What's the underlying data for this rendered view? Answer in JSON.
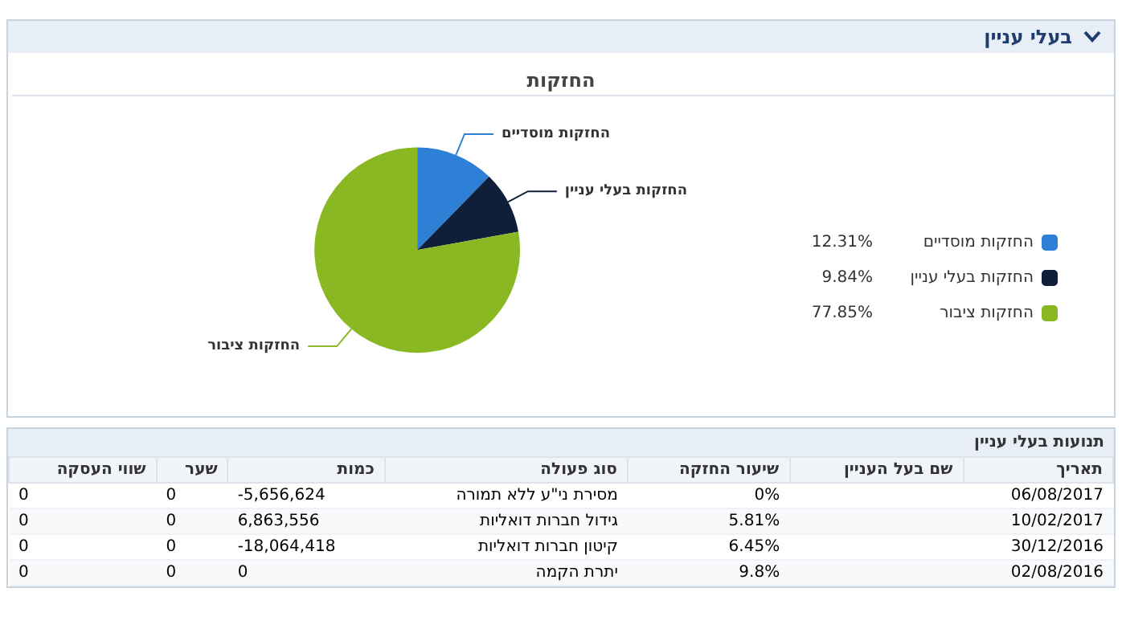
{
  "chart_data": [
    {
      "type": "pie",
      "subtitle": "בעלי עניין",
      "title": "החזקות",
      "legend": "right",
      "categories": [
        "החזקות מוסדיים",
        "החזקות בעלי עניין",
        "החזקות ציבור"
      ],
      "values": [
        12.31,
        9.84,
        77.85
      ],
      "value_labels": [
        "12.31%",
        "9.84%",
        "77.85%"
      ],
      "colors": [
        "#2e7fd6",
        "#0f1f3a",
        "#8ab823"
      ]
    },
    {
      "type": "other",
      "title": "תנועות בעלי עניין",
      "categories": [
        "תאריך",
        "שם בעל העניין",
        "שיעור החזקה",
        "סוג פעולה",
        "כמות",
        "שער",
        "שווי העסקה"
      ],
      "cells": [
        [
          "06/08/2017",
          null,
          "0%",
          "מסירת ני\"ע ללא תמורה",
          "-5,656,624",
          "0",
          "0"
        ],
        [
          "10/02/2017",
          null,
          "5.81%",
          "גידול חברות דואליות",
          "6,863,556",
          "0",
          "0"
        ],
        [
          "30/12/2016",
          null,
          "6.45%",
          "קיטון חברות דואליות",
          "-18,064,418",
          "0",
          "0"
        ],
        [
          "02/08/2016",
          null,
          "9.8%",
          "יתרת הקמה",
          "0",
          "0",
          "0"
        ]
      ]
    }
  ]
}
